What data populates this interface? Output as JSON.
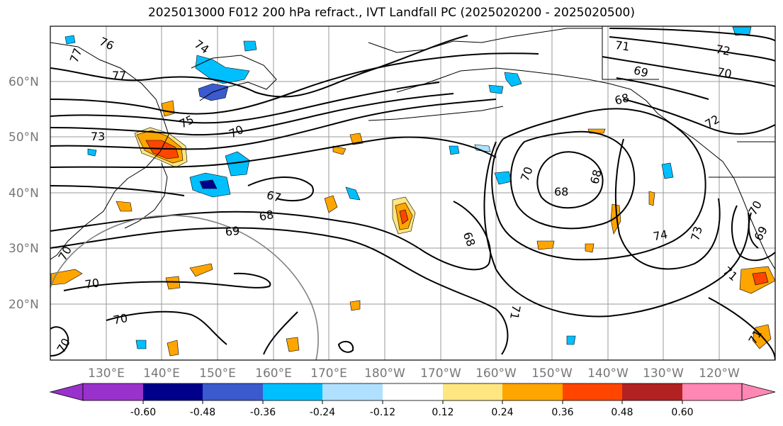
{
  "title": "2025013000 F012 200 hPa refract., IVT Landfall PC (2025020200 - 2025020500)",
  "map": {
    "projection": "PlateCarree",
    "lon_range_deg_e": [
      121,
      251
    ],
    "lat_range_deg_n": [
      10,
      70
    ],
    "gridlines": true,
    "lat_labels": [
      "20°N",
      "30°N",
      "40°N",
      "50°N",
      "60°N"
    ],
    "lon_labels": [
      "130°E",
      "140°E",
      "150°E",
      "160°E",
      "170°E",
      "180°W",
      "170°W",
      "160°W",
      "150°W",
      "140°W",
      "130°W",
      "120°W"
    ],
    "contour_labels": [
      "76",
      "77",
      "74",
      "77",
      "75",
      "73",
      "70",
      "71",
      "72",
      "70",
      "69",
      "68",
      "72",
      "67",
      "68",
      "69",
      "70",
      "70",
      "70",
      "70",
      "68",
      "68",
      "74",
      "73",
      "71",
      "71",
      "71",
      "70",
      "70",
      "69",
      "68"
    ],
    "fill_levels": [
      -0.6,
      -0.48,
      -0.36,
      -0.24,
      -0.12,
      0.12,
      0.24,
      0.36,
      0.48,
      0.6
    ],
    "fill_colors": [
      "#9932cc",
      "#00008b",
      "#3a5acd",
      "#00bfff",
      "#b0e0ff",
      "#ffffff",
      "#ffe680",
      "#ffa500",
      "#ff4500",
      "#b22222",
      "#ff87b4"
    ],
    "line_color": "#000000",
    "circle_color": "#808080"
  },
  "colorbar": {
    "extend": "both",
    "tick_labels": [
      "-0.60",
      "-0.48",
      "-0.36",
      "-0.24",
      "-0.12",
      "0.12",
      "0.24",
      "0.36",
      "0.48",
      "0.60"
    ]
  }
}
